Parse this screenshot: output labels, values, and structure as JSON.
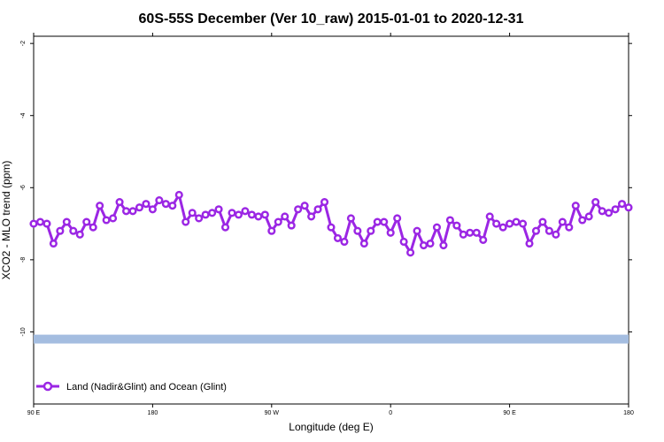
{
  "chart_data": {
    "type": "line",
    "title": "60S-55S December (Ver 10_raw)   2015-01-01 to 2020-12-31",
    "xlabel": "Longitude (deg E)",
    "ylabel": "XCO2 - MLO trend (ppm)",
    "x_tick_labels": [
      "90 E",
      "180",
      "90 W",
      "0",
      "90 E",
      "180"
    ],
    "x_tick_values": [
      90,
      180,
      270,
      360,
      450,
      540
    ],
    "xlim": [
      90,
      540
    ],
    "y_tick_labels": [
      "-2",
      "-4",
      "-6",
      "-8",
      "-10"
    ],
    "y_tick_values": [
      -2,
      -4,
      -6,
      -8,
      -10
    ],
    "ylim": [
      -12,
      -1.8
    ],
    "grid": false,
    "legend_position": "bottom-left",
    "band": {
      "y": -10.2,
      "color": "#a4bde0"
    },
    "series": [
      {
        "name": "Land (Nadir&Glint) and Ocean (Glint)",
        "color": "#9b26e4",
        "x": [
          90,
          95,
          100,
          105,
          110,
          115,
          120,
          125,
          130,
          135,
          140,
          145,
          150,
          155,
          160,
          165,
          170,
          175,
          180,
          185,
          190,
          195,
          200,
          205,
          210,
          215,
          220,
          225,
          230,
          235,
          240,
          245,
          250,
          255,
          260,
          265,
          270,
          275,
          280,
          285,
          290,
          295,
          300,
          305,
          310,
          315,
          320,
          325,
          330,
          335,
          340,
          345,
          350,
          355,
          360,
          365,
          370,
          375,
          380,
          385,
          390,
          395,
          400,
          405,
          410,
          415,
          420,
          425,
          430,
          435,
          440,
          445,
          450,
          455,
          460,
          465,
          470,
          475,
          480,
          485,
          490,
          495,
          500,
          505,
          510,
          515,
          520,
          525,
          530,
          535,
          540
        ],
        "y": [
          -7.0,
          -6.95,
          -7.0,
          -7.55,
          -7.2,
          -6.95,
          -7.2,
          -7.3,
          -6.95,
          -7.1,
          -6.5,
          -6.9,
          -6.85,
          -6.4,
          -6.65,
          -6.65,
          -6.55,
          -6.45,
          -6.6,
          -6.35,
          -6.45,
          -6.5,
          -6.2,
          -6.95,
          -6.7,
          -6.85,
          -6.75,
          -6.7,
          -6.6,
          -7.1,
          -6.7,
          -6.75,
          -6.65,
          -6.75,
          -6.8,
          -6.75,
          -7.2,
          -6.95,
          -6.8,
          -7.05,
          -6.6,
          -6.5,
          -6.8,
          -6.6,
          -6.4,
          -7.1,
          -7.4,
          -7.5,
          -6.85,
          -7.2,
          -7.55,
          -7.2,
          -6.95,
          -6.95,
          -7.25,
          -6.85,
          -7.5,
          -7.8,
          -7.2,
          -7.6,
          -7.55,
          -7.1,
          -7.6,
          -6.9,
          -7.05,
          -7.3,
          -7.25,
          -7.25,
          -7.45,
          -6.8,
          -7.0,
          -7.1,
          -7.0,
          -6.95,
          -7.0,
          -7.55,
          -7.2,
          -6.95,
          -7.2,
          -7.3,
          -6.95,
          -7.1,
          -6.5,
          -6.9,
          -6.8,
          -6.4,
          -6.65,
          -6.7,
          -6.6,
          -6.45,
          -6.55
        ]
      }
    ]
  }
}
